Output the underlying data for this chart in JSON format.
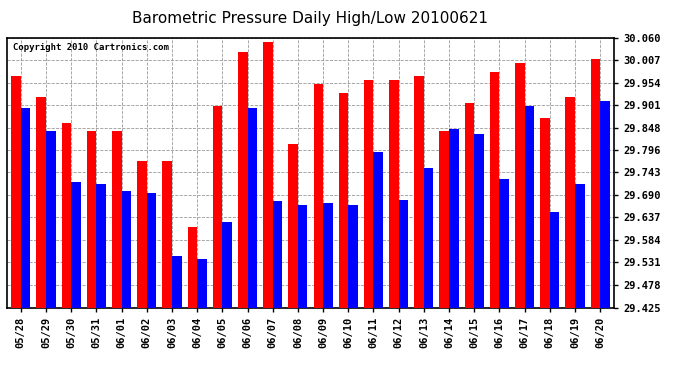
{
  "title": "Barometric Pressure Daily High/Low 20100621",
  "copyright": "Copyright 2010 Cartronics.com",
  "dates": [
    "05/28",
    "05/29",
    "05/30",
    "05/31",
    "06/01",
    "06/02",
    "06/03",
    "06/04",
    "06/05",
    "06/06",
    "06/07",
    "06/08",
    "06/09",
    "06/10",
    "06/11",
    "06/12",
    "06/13",
    "06/14",
    "06/15",
    "06/16",
    "06/17",
    "06/18",
    "06/19",
    "06/20"
  ],
  "highs": [
    29.97,
    29.92,
    29.86,
    29.84,
    29.84,
    29.77,
    29.77,
    29.615,
    29.9,
    30.025,
    30.05,
    29.81,
    29.95,
    29.93,
    29.96,
    29.96,
    29.97,
    29.84,
    29.905,
    29.98,
    30.0,
    29.87,
    29.92,
    30.01
  ],
  "lows": [
    29.895,
    29.84,
    29.72,
    29.715,
    29.7,
    29.695,
    29.545,
    29.54,
    29.625,
    29.895,
    29.675,
    29.665,
    29.67,
    29.665,
    29.79,
    29.678,
    29.753,
    29.845,
    29.832,
    29.728,
    29.9,
    29.65,
    29.715,
    29.91
  ],
  "ylim": [
    29.425,
    30.06
  ],
  "yticks": [
    29.425,
    29.478,
    29.531,
    29.584,
    29.637,
    29.69,
    29.743,
    29.796,
    29.848,
    29.901,
    29.954,
    30.007,
    30.06
  ],
  "high_color": "#ff0000",
  "low_color": "#0000ff",
  "bg_color": "#ffffff",
  "grid_color": "#999999",
  "bar_width": 0.38,
  "title_fontsize": 11,
  "tick_fontsize": 7.5
}
